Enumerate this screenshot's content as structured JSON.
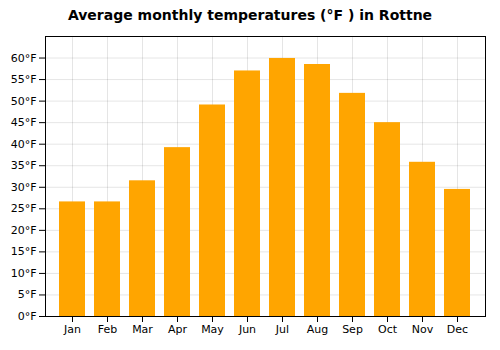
{
  "chart_data": {
    "type": "bar",
    "title": "Average monthly temperatures (°F ) in Rottne",
    "categories": [
      "Jan",
      "Feb",
      "Mar",
      "Apr",
      "May",
      "Jun",
      "Jul",
      "Aug",
      "Sep",
      "Oct",
      "Nov",
      "Dec"
    ],
    "values": [
      26.6,
      26.6,
      31.5,
      39.2,
      49.1,
      57.0,
      59.9,
      58.5,
      51.8,
      45.0,
      35.8,
      29.5
    ],
    "color": "#FFA500",
    "ylim": [
      0,
      65
    ],
    "yticks": [
      {
        "value": 0,
        "label": "0°F"
      },
      {
        "value": 5,
        "label": "5°F"
      },
      {
        "value": 10,
        "label": "10°F"
      },
      {
        "value": 15,
        "label": "15°F"
      },
      {
        "value": 20,
        "label": "20°F"
      },
      {
        "value": 25,
        "label": "25°F"
      },
      {
        "value": 30,
        "label": "30°F"
      },
      {
        "value": 35,
        "label": "35°F"
      },
      {
        "value": 40,
        "label": "40°F"
      },
      {
        "value": 45,
        "label": "45°F"
      },
      {
        "value": 50,
        "label": "50°F"
      },
      {
        "value": 55,
        "label": "55°F"
      },
      {
        "value": 60,
        "label": "60°F"
      }
    ],
    "grid": true
  }
}
